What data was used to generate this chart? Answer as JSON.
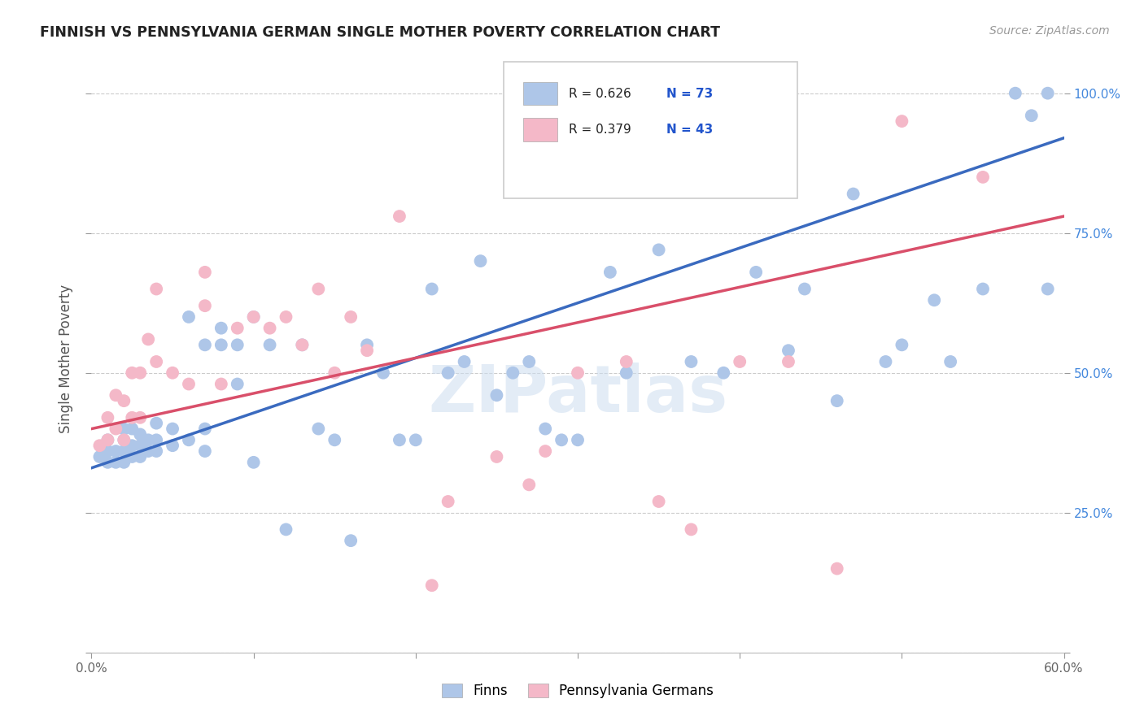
{
  "title": "FINNISH VS PENNSYLVANIA GERMAN SINGLE MOTHER POVERTY CORRELATION CHART",
  "source": "Source: ZipAtlas.com",
  "ylabel": "Single Mother Poverty",
  "x_min": 0.0,
  "x_max": 0.6,
  "y_min": 0.0,
  "y_max": 1.05,
  "x_tick_labels": [
    "0.0%",
    "",
    "",
    "",
    "",
    "",
    "60.0%"
  ],
  "y_tick_labels_right": [
    "",
    "25.0%",
    "50.0%",
    "75.0%",
    "100.0%"
  ],
  "legend_r_finns": "R = 0.626",
  "legend_n_finns": "N = 73",
  "legend_r_pg": "R = 0.379",
  "legend_n_pg": "N = 43",
  "color_finns": "#aec6e8",
  "color_pg": "#f4b8c8",
  "color_line_finns": "#3a6abf",
  "color_line_pg": "#d94f6a",
  "watermark": "ZIPatlas",
  "finns_x": [
    0.005,
    0.01,
    0.01,
    0.01,
    0.015,
    0.015,
    0.02,
    0.02,
    0.02,
    0.02,
    0.025,
    0.025,
    0.025,
    0.03,
    0.03,
    0.03,
    0.035,
    0.035,
    0.04,
    0.04,
    0.04,
    0.05,
    0.05,
    0.06,
    0.06,
    0.07,
    0.07,
    0.07,
    0.08,
    0.08,
    0.09,
    0.09,
    0.1,
    0.1,
    0.11,
    0.12,
    0.13,
    0.14,
    0.15,
    0.16,
    0.17,
    0.18,
    0.19,
    0.2,
    0.21,
    0.22,
    0.23,
    0.24,
    0.25,
    0.26,
    0.27,
    0.28,
    0.29,
    0.3,
    0.32,
    0.33,
    0.35,
    0.37,
    0.39,
    0.41,
    0.43,
    0.44,
    0.46,
    0.47,
    0.49,
    0.5,
    0.52,
    0.53,
    0.55,
    0.57,
    0.58,
    0.59,
    0.59
  ],
  "finns_y": [
    0.35,
    0.34,
    0.36,
    0.38,
    0.34,
    0.36,
    0.34,
    0.36,
    0.38,
    0.4,
    0.35,
    0.37,
    0.4,
    0.35,
    0.37,
    0.39,
    0.36,
    0.38,
    0.36,
    0.38,
    0.41,
    0.37,
    0.4,
    0.6,
    0.38,
    0.55,
    0.36,
    0.4,
    0.55,
    0.58,
    0.48,
    0.55,
    0.34,
    0.6,
    0.55,
    0.22,
    0.55,
    0.4,
    0.38,
    0.2,
    0.55,
    0.5,
    0.38,
    0.38,
    0.65,
    0.5,
    0.52,
    0.7,
    0.46,
    0.5,
    0.52,
    0.4,
    0.38,
    0.38,
    0.68,
    0.5,
    0.72,
    0.52,
    0.5,
    0.68,
    0.54,
    0.65,
    0.45,
    0.82,
    0.52,
    0.55,
    0.63,
    0.52,
    0.65,
    1.0,
    0.96,
    0.65,
    1.0
  ],
  "pg_x": [
    0.005,
    0.01,
    0.01,
    0.015,
    0.015,
    0.02,
    0.02,
    0.025,
    0.025,
    0.03,
    0.03,
    0.035,
    0.04,
    0.04,
    0.05,
    0.06,
    0.07,
    0.07,
    0.08,
    0.09,
    0.1,
    0.11,
    0.12,
    0.13,
    0.14,
    0.15,
    0.16,
    0.17,
    0.19,
    0.21,
    0.22,
    0.25,
    0.27,
    0.28,
    0.3,
    0.33,
    0.35,
    0.37,
    0.4,
    0.43,
    0.46,
    0.5,
    0.55
  ],
  "pg_y": [
    0.37,
    0.38,
    0.42,
    0.4,
    0.46,
    0.38,
    0.45,
    0.42,
    0.5,
    0.42,
    0.5,
    0.56,
    0.52,
    0.65,
    0.5,
    0.48,
    0.62,
    0.68,
    0.48,
    0.58,
    0.6,
    0.58,
    0.6,
    0.55,
    0.65,
    0.5,
    0.6,
    0.54,
    0.78,
    0.12,
    0.27,
    0.35,
    0.3,
    0.36,
    0.5,
    0.52,
    0.27,
    0.22,
    0.52,
    0.52,
    0.15,
    0.95,
    0.85
  ],
  "finns_line_x0": 0.0,
  "finns_line_y0": 0.33,
  "finns_line_x1": 0.6,
  "finns_line_y1": 0.92,
  "pg_line_x0": 0.0,
  "pg_line_y0": 0.4,
  "pg_line_x1": 0.6,
  "pg_line_y1": 0.78
}
